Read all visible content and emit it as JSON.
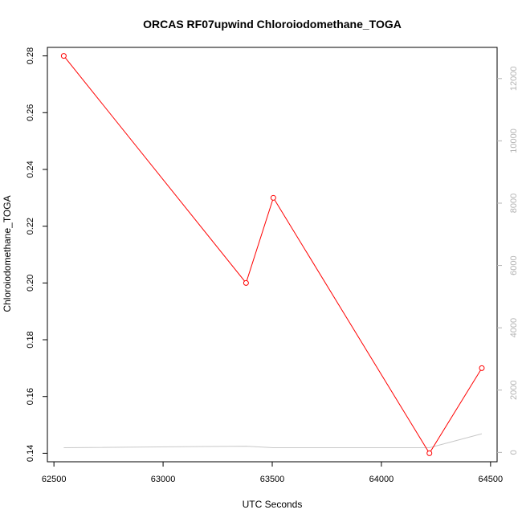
{
  "chart_data": {
    "type": "line",
    "title": "ORCAS RF07upwind Chloroiodomethane_TOGA",
    "xlabel": "UTC Seconds",
    "ylabel": "Chloroiodomethane_TOGA",
    "xlim": [
      62470,
      64530
    ],
    "ylim": [
      0.137,
      0.283
    ],
    "y2lim": [
      -300,
      13000
    ],
    "x_ticks": [
      "62500",
      "63000",
      "63500",
      "64000",
      "64500"
    ],
    "y_ticks": [
      "0.14",
      "0.16",
      "0.18",
      "0.20",
      "0.22",
      "0.24",
      "0.26",
      "0.28"
    ],
    "y2_ticks": [
      "0",
      "2000",
      "4000",
      "6000",
      "8000",
      "10000",
      "12000"
    ],
    "grid": false,
    "legend": "none",
    "series": [
      {
        "axis": "left",
        "color": "#ff0000",
        "markers": true,
        "x": [
          62545,
          63380,
          63505,
          64220,
          64460
        ],
        "y": [
          0.28,
          0.2,
          0.23,
          0.14,
          0.17
        ]
      },
      {
        "axis": "right",
        "color": "#c8c8c8",
        "markers": false,
        "x": [
          62545,
          63380,
          63505,
          64220,
          64460
        ],
        "y": [
          150,
          200,
          150,
          150,
          600
        ]
      }
    ]
  }
}
